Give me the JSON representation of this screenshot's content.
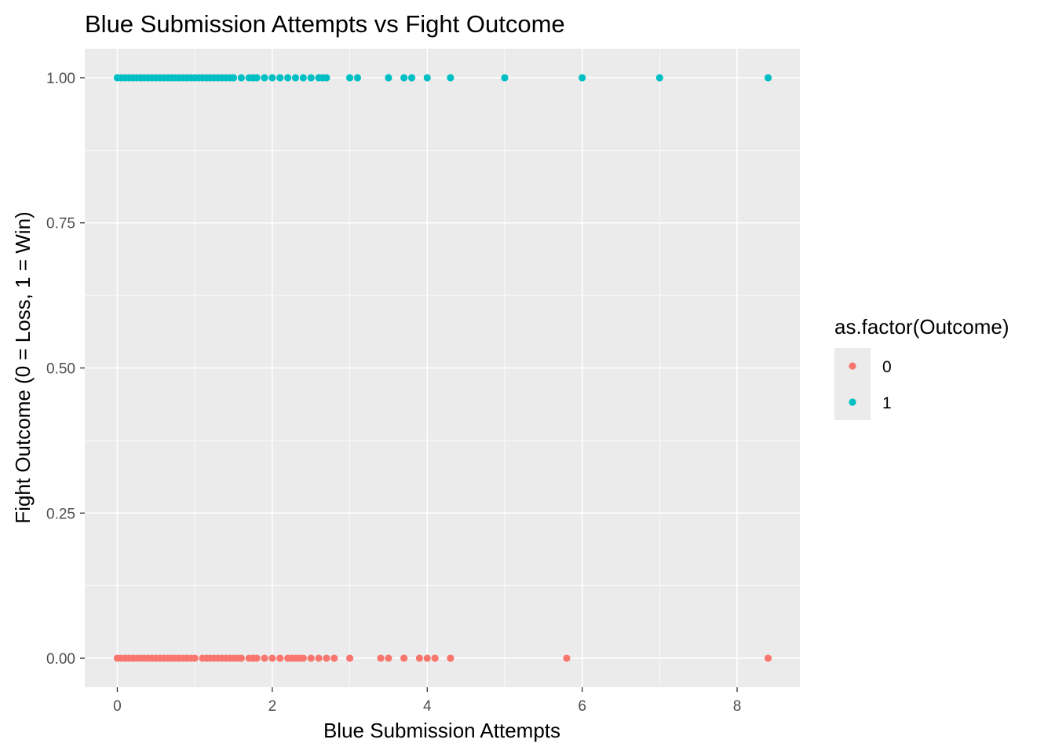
{
  "chart_data": {
    "type": "scatter",
    "title": "Blue Submission Attempts vs Fight Outcome",
    "xlabel": "Blue Submission Attempts",
    "ylabel": "Fight Outcome (0 = Loss, 1 = Win)",
    "xlim": [
      -0.42,
      8.81
    ],
    "ylim": [
      -0.05,
      1.05
    ],
    "x_ticks": [
      0,
      2,
      4,
      6,
      8
    ],
    "x_tick_labels": [
      "0",
      "2",
      "4",
      "6",
      "8"
    ],
    "y_ticks": [
      0,
      0.25,
      0.5,
      0.75,
      1
    ],
    "y_tick_labels": [
      "0.00",
      "0.25",
      "0.50",
      "0.75",
      "1.00"
    ],
    "grid": true,
    "legend": {
      "title": "as.factor(Outcome)",
      "position": "right",
      "entries": [
        "0",
        "1"
      ]
    },
    "series": [
      {
        "name": "0",
        "color": "#F8766D",
        "y": 0,
        "x": [
          0,
          0.05,
          0.1,
          0.15,
          0.2,
          0.25,
          0.3,
          0.35,
          0.4,
          0.45,
          0.5,
          0.55,
          0.6,
          0.65,
          0.7,
          0.75,
          0.8,
          0.85,
          0.9,
          0.95,
          1.0,
          1.1,
          1.15,
          1.2,
          1.25,
          1.3,
          1.35,
          1.4,
          1.45,
          1.5,
          1.55,
          1.6,
          1.7,
          1.75,
          1.8,
          1.9,
          2.0,
          2.1,
          2.2,
          2.25,
          2.3,
          2.35,
          2.4,
          2.5,
          2.6,
          2.7,
          2.8,
          3.0,
          3.4,
          3.5,
          3.7,
          3.9,
          4.0,
          4.1,
          4.3,
          5.8,
          8.4
        ]
      },
      {
        "name": "1",
        "color": "#00BFC4",
        "y": 1,
        "x": [
          0,
          0.05,
          0.1,
          0.15,
          0.2,
          0.25,
          0.3,
          0.35,
          0.4,
          0.45,
          0.5,
          0.55,
          0.6,
          0.65,
          0.7,
          0.75,
          0.8,
          0.85,
          0.9,
          0.95,
          1.0,
          1.05,
          1.1,
          1.15,
          1.2,
          1.25,
          1.3,
          1.35,
          1.4,
          1.45,
          1.5,
          1.6,
          1.7,
          1.75,
          1.8,
          1.9,
          2.0,
          2.1,
          2.2,
          2.3,
          2.4,
          2.5,
          2.6,
          2.65,
          2.7,
          3.0,
          3.1,
          3.5,
          3.7,
          3.8,
          4.0,
          4.3,
          5.0,
          6.0,
          7.0,
          8.4
        ]
      }
    ]
  }
}
